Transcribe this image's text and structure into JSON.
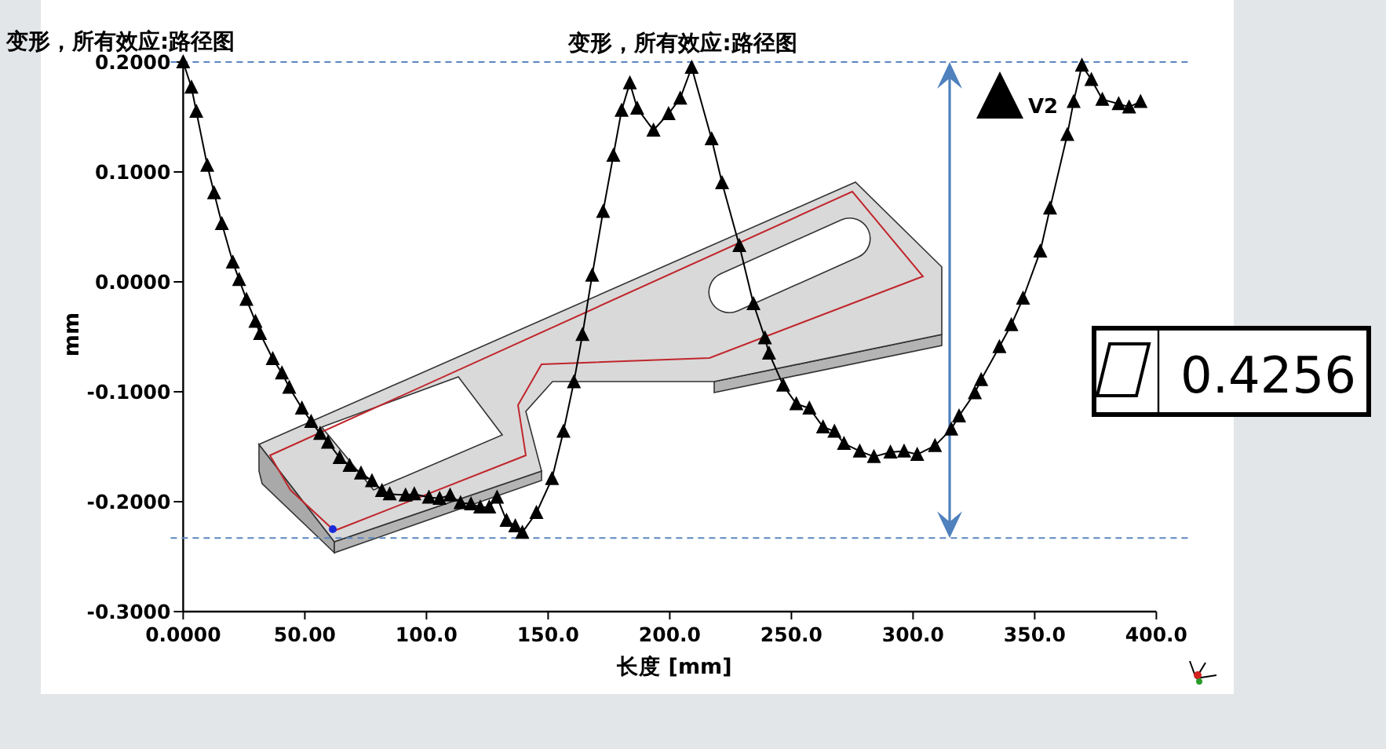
{
  "chart_data": {
    "type": "line",
    "title": "变形，所有效应:路径图",
    "xlabel": "长度 [mm]",
    "ylabel": "mm",
    "annotations": [
      "变形，所有效应:路径图",
      "0.4256"
    ],
    "xlim": [
      0,
      400
    ],
    "ylim": [
      -0.3,
      0.2
    ],
    "xticks": [
      {
        "value": 0,
        "label": "0.0000"
      },
      {
        "value": 50,
        "label": "50.00"
      },
      {
        "value": 100,
        "label": "100.0"
      },
      {
        "value": 150,
        "label": "150.0"
      },
      {
        "value": 200,
        "label": "200.0"
      },
      {
        "value": 250,
        "label": "250.0"
      },
      {
        "value": 300,
        "label": "300.0"
      },
      {
        "value": 350,
        "label": "350.0"
      },
      {
        "value": 400,
        "label": "400.0"
      }
    ],
    "yticks": [
      {
        "value": -0.3,
        "label": "-0.3000"
      },
      {
        "value": -0.2,
        "label": "-0.2000"
      },
      {
        "value": -0.1,
        "label": "-0.1000"
      },
      {
        "value": 0,
        "label": "0.0000"
      },
      {
        "value": 0.1,
        "label": "0.1000"
      },
      {
        "value": 0.2,
        "label": "0.2000"
      }
    ],
    "marker": "triangle",
    "legend": "top right",
    "ref_lines": [
      {
        "axis": "y",
        "value": 0.2,
        "color": "#5b87bf",
        "line_style": "dashed"
      },
      {
        "axis": "y",
        "value": -0.233,
        "color": "#5b87bf",
        "line_style": "dashed"
      }
    ],
    "series": [
      {
        "name": "V2",
        "color": "#000000",
        "x": [
          0,
          3.4,
          5.4,
          9.9,
          12.7,
          15.9,
          20.4,
          23,
          26,
          29.7,
          31.6,
          36.8,
          40.6,
          43.6,
          48.8,
          52.6,
          56.3,
          59.5,
          64.3,
          68.4,
          73.1,
          77.6,
          81.7,
          84.9,
          91.4,
          95,
          101,
          105.4,
          109.7,
          114,
          118.3,
          122.1,
          125.8,
          129,
          132.9,
          136.5,
          139.4,
          145.2,
          151.6,
          156.3,
          160.6,
          164.1,
          168.1,
          172.6,
          176.8,
          180.2,
          183.6,
          186.6,
          193.3,
          199.5,
          204.3,
          209,
          217.2,
          221.5,
          228.6,
          234.4,
          239.1,
          240.8,
          246.6,
          252,
          257.4,
          263,
          267.7,
          271.6,
          278.1,
          283.9,
          290.7,
          296.3,
          301.7,
          309,
          315.7,
          318.9,
          325.4,
          328,
          335.5,
          340.4,
          345.2,
          352.3,
          356.3,
          363.4,
          366,
          369.4,
          373.3,
          377.8,
          384.5,
          388.8,
          393.5
        ],
        "values": [
          0.2,
          0.177,
          0.155,
          0.106,
          0.081,
          0.053,
          0.018,
          0.002,
          -0.016,
          -0.036,
          -0.047,
          -0.07,
          -0.083,
          -0.096,
          -0.115,
          -0.127,
          -0.138,
          -0.146,
          -0.16,
          -0.167,
          -0.174,
          -0.181,
          -0.19,
          -0.193,
          -0.194,
          -0.193,
          -0.196,
          -0.197,
          -0.194,
          -0.201,
          -0.202,
          -0.205,
          -0.205,
          -0.196,
          -0.217,
          -0.222,
          -0.228,
          -0.21,
          -0.179,
          -0.136,
          -0.091,
          -0.048,
          0.006,
          0.064,
          0.115,
          0.156,
          0.181,
          0.158,
          0.138,
          0.153,
          0.167,
          0.195,
          0.13,
          0.09,
          0.033,
          -0.02,
          -0.051,
          -0.065,
          -0.094,
          -0.111,
          -0.115,
          -0.132,
          -0.136,
          -0.147,
          -0.154,
          -0.159,
          -0.155,
          -0.154,
          -0.157,
          -0.149,
          -0.134,
          -0.122,
          -0.101,
          -0.089,
          -0.059,
          -0.039,
          -0.015,
          0.028,
          0.067,
          0.134,
          0.164,
          0.197,
          0.184,
          0.166,
          0.162,
          0.159,
          0.164
        ]
      }
    ]
  }
}
